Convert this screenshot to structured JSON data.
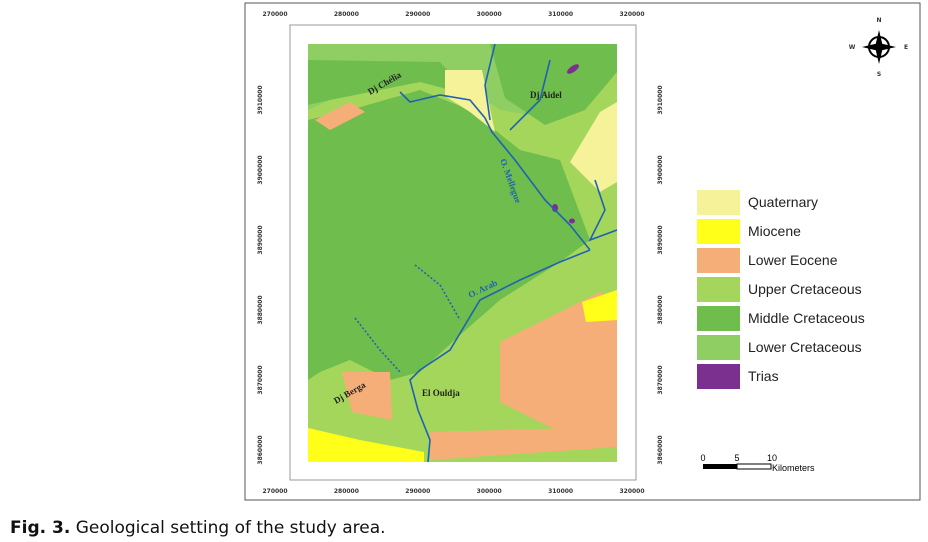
{
  "map": {
    "x_ticks": [
      "270000",
      "280000",
      "290000",
      "300000",
      "310000",
      "320000"
    ],
    "y_ticks": [
      "3910000",
      "3900000",
      "3890000",
      "3880000",
      "3870000",
      "3860000"
    ],
    "places": [
      "Dj Chélia",
      "Dj Aidel",
      "O. Mellegue",
      "O. Arab",
      "El Ouldja",
      "Dj Berga"
    ],
    "compass": [
      "N",
      "S",
      "W",
      "E"
    ],
    "legend": [
      {
        "label": "Quaternary",
        "color": "#f6f29a"
      },
      {
        "label": "Miocene",
        "color": "#ffff1a"
      },
      {
        "label": "Lower Eocene",
        "color": "#f6ae78"
      },
      {
        "label": "Upper Cretaceous",
        "color": "#a5d65c"
      },
      {
        "label": "Middle Cretaceous",
        "color": "#6fbd4d"
      },
      {
        "label": "Lower Cretaceous",
        "color": "#8fce63"
      },
      {
        "label": "Trias",
        "color": "#7b2f8e"
      }
    ],
    "scale": [
      "0",
      "5",
      "10",
      "Kilometers"
    ]
  },
  "caption": {
    "label": "Fig. 3.",
    "text": "Geological setting of the study area."
  }
}
